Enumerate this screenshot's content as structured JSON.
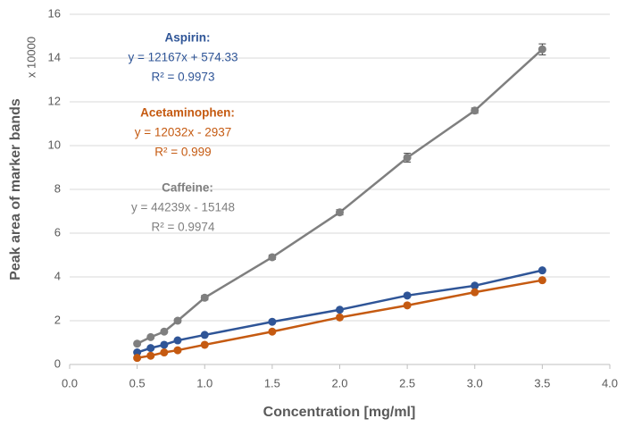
{
  "chart_data": {
    "type": "line",
    "x_label": "Concentration [mg/ml]",
    "y_label": "Peak area of marker bands",
    "y_multiplier": "x 10000",
    "x": [
      0.5,
      0.6,
      0.7,
      0.8,
      1.0,
      1.5,
      2.0,
      2.5,
      3.0,
      3.5
    ],
    "series": [
      {
        "name": "Aspirin:",
        "color": "#2f5597",
        "equation": "y = 12167x + 574.33",
        "r2": "R² = 0.9973",
        "values": [
          0.55,
          0.75,
          0.9,
          1.1,
          1.35,
          1.95,
          2.5,
          3.15,
          3.6,
          4.3
        ]
      },
      {
        "name": "Acetaminophen:",
        "color": "#c55a11",
        "equation": "y = 12032x - 2937",
        "r2": "R² = 0.999",
        "values": [
          0.3,
          0.4,
          0.55,
          0.65,
          0.9,
          1.5,
          2.15,
          2.7,
          3.3,
          3.85
        ]
      },
      {
        "name": "Caffeine:",
        "color": "#7f7f7f",
        "equation": "y = 44239x - 15148",
        "r2": "R² = 0.9974",
        "values": [
          0.95,
          1.25,
          1.5,
          2.0,
          3.05,
          4.9,
          6.95,
          9.45,
          11.6,
          14.4
        ],
        "errors": [
          0.05,
          0.05,
          0.05,
          0.08,
          0.1,
          0.1,
          0.12,
          0.2,
          0.12,
          0.25
        ]
      }
    ],
    "xlim": [
      0,
      4
    ],
    "xticks": [
      {
        "value": 0,
        "label": "0.0"
      },
      {
        "value": 0.5,
        "label": "0.5"
      },
      {
        "value": 1,
        "label": "1.0"
      },
      {
        "value": 1.5,
        "label": "1.5"
      },
      {
        "value": 2,
        "label": "2.0"
      },
      {
        "value": 2.5,
        "label": "2.5"
      },
      {
        "value": 3,
        "label": "3.0"
      },
      {
        "value": 3.5,
        "label": "3.5"
      },
      {
        "value": 4,
        "label": "4.0"
      }
    ],
    "ylim": [
      0,
      16
    ],
    "yticks": [
      0,
      2,
      4,
      6,
      8,
      10,
      12,
      14,
      16
    ],
    "grid": true
  }
}
